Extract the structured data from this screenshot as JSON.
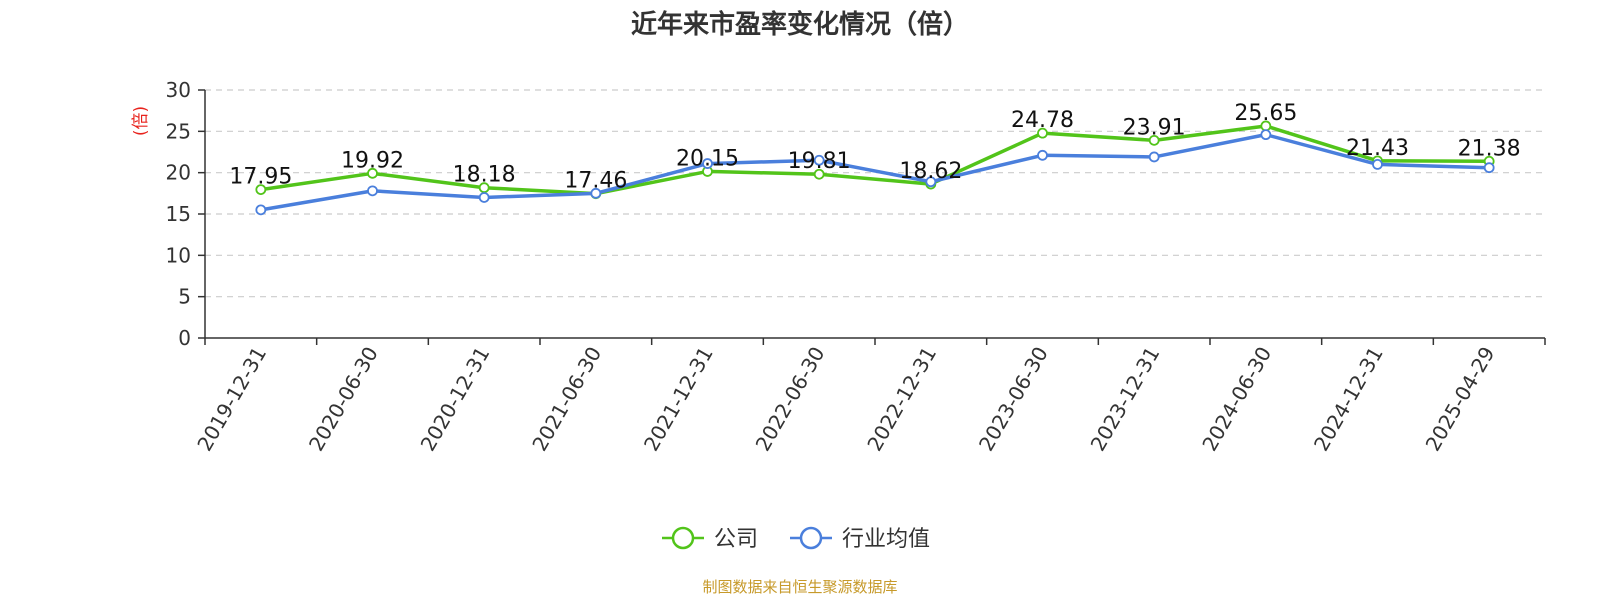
{
  "chart_data": {
    "type": "line",
    "title": "近年来市盈率变化情况（倍）",
    "ylabel": "(倍)",
    "xlabel": "",
    "categories": [
      "2019-12-31",
      "2020-06-30",
      "2020-12-31",
      "2021-06-30",
      "2021-12-31",
      "2022-06-30",
      "2022-12-31",
      "2023-06-30",
      "2023-12-31",
      "2024-06-30",
      "2024-12-31",
      "2025-04-29"
    ],
    "ylim": [
      0,
      30
    ],
    "yticks": [
      0,
      5,
      10,
      15,
      20,
      25,
      30
    ],
    "grid": true,
    "legend_position": "bottom-center",
    "series": [
      {
        "name": "公司",
        "color": "#52c41a",
        "labels_shown": true,
        "values": [
          17.95,
          19.92,
          18.18,
          17.46,
          20.15,
          19.81,
          18.62,
          24.78,
          23.91,
          25.65,
          21.43,
          21.38
        ]
      },
      {
        "name": "行业均值",
        "color": "#4a7fdc",
        "labels_shown": false,
        "values": [
          15.5,
          17.8,
          17.0,
          17.5,
          21.1,
          21.5,
          18.9,
          22.1,
          21.9,
          24.6,
          21.0,
          20.6
        ]
      }
    ]
  },
  "source_note": "制图数据来自恒生聚源数据库",
  "colors": {
    "ylabel": "#e8231d",
    "source": "#c79a2a",
    "grid": "#cccccc",
    "axis": "#333333"
  }
}
